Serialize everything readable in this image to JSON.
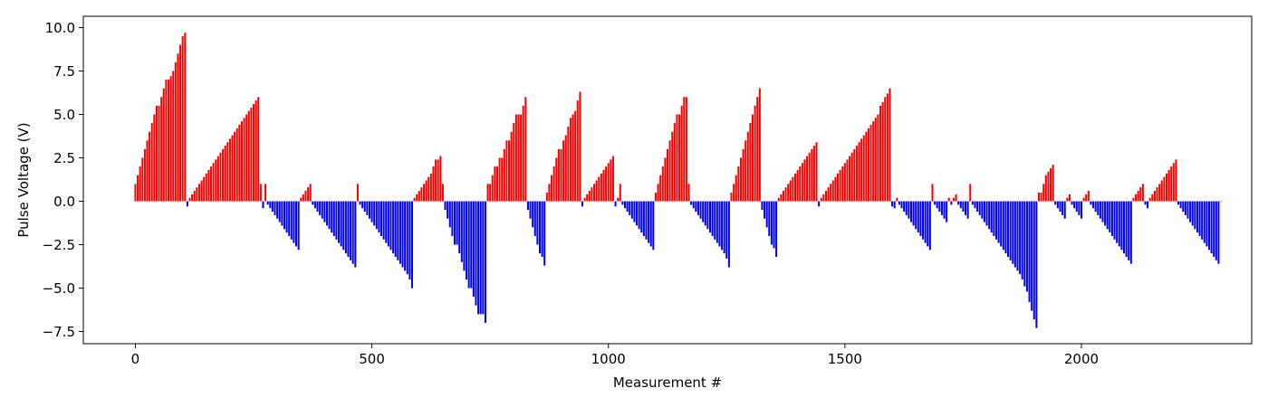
{
  "chart_data": {
    "type": "bar",
    "title": "",
    "xlabel": "Measurement #",
    "ylabel": "Pulse Voltage (V)",
    "xlim": [
      -110,
      2360
    ],
    "ylim": [
      -8.2,
      10.65
    ],
    "x_ticks": [
      0,
      500,
      1000,
      1500,
      2000
    ],
    "y_ticks": [
      10.0,
      7.5,
      5.0,
      2.5,
      0.0,
      -2.5,
      -5.0,
      -7.5
    ],
    "grid": false,
    "legend": "none",
    "bar_spacing": 5,
    "positive_color": "#ff0000",
    "negative_color": "#0000ff",
    "values": [
      1.0,
      1.5,
      2.0,
      2.5,
      3.0,
      3.5,
      4.0,
      4.5,
      5.0,
      5.5,
      5.5,
      6.0,
      6.5,
      7.0,
      7.0,
      7.2,
      7.5,
      8.0,
      8.5,
      9.0,
      9.5,
      9.7,
      -0.3,
      0.2,
      0.4,
      0.6,
      0.8,
      1.0,
      1.2,
      1.4,
      1.6,
      1.8,
      2.0,
      2.2,
      2.4,
      2.6,
      2.8,
      3.0,
      3.2,
      3.4,
      3.6,
      3.8,
      4.0,
      4.2,
      4.4,
      4.6,
      4.8,
      5.0,
      5.2,
      5.4,
      5.6,
      5.8,
      6.0,
      1.0,
      -0.4,
      1.0,
      -0.2,
      -0.4,
      -0.6,
      -0.8,
      -1.0,
      -1.2,
      -1.4,
      -1.6,
      -1.8,
      -2.0,
      -2.2,
      -2.4,
      -2.6,
      -2.8,
      0.2,
      0.4,
      0.6,
      0.8,
      1.0,
      -0.2,
      -0.4,
      -0.6,
      -0.8,
      -1.0,
      -1.2,
      -1.4,
      -1.6,
      -1.8,
      -2.0,
      -2.2,
      -2.4,
      -2.6,
      -2.8,
      -3.0,
      -3.2,
      -3.4,
      -3.6,
      -3.8,
      1.0,
      -0.2,
      -0.4,
      -0.6,
      -0.8,
      -1.0,
      -1.2,
      -1.4,
      -1.6,
      -1.8,
      -2.0,
      -2.2,
      -2.4,
      -2.6,
      -2.8,
      -3.0,
      -3.2,
      -3.4,
      -3.6,
      -3.8,
      -4.0,
      -4.2,
      -4.5,
      -5.0,
      0.2,
      0.4,
      0.6,
      0.8,
      1.0,
      1.2,
      1.4,
      1.6,
      2.0,
      2.4,
      2.4,
      2.6,
      1.0,
      -0.5,
      -1.0,
      -1.5,
      -2.0,
      -2.5,
      -2.5,
      -3.0,
      -3.5,
      -4.0,
      -4.5,
      -5.0,
      -5.0,
      -5.5,
      -6.0,
      -6.5,
      -6.5,
      -6.5,
      -7.0,
      1.0,
      1.0,
      1.5,
      2.0,
      2.0,
      2.5,
      2.5,
      3.0,
      3.5,
      3.5,
      4.0,
      4.5,
      5.0,
      5.0,
      5.0,
      5.5,
      6.0,
      -0.5,
      -1.0,
      -1.5,
      -2.0,
      -2.5,
      -3.0,
      -3.2,
      -3.7,
      0.5,
      1.0,
      1.5,
      2.0,
      2.5,
      3.0,
      3.0,
      3.5,
      3.8,
      4.3,
      4.8,
      5.0,
      5.2,
      5.8,
      6.3,
      -0.3,
      0.2,
      0.4,
      0.6,
      0.8,
      1.0,
      1.2,
      1.4,
      1.6,
      1.8,
      2.0,
      2.2,
      2.4,
      2.6,
      -0.3,
      0.2,
      1.0,
      -0.2,
      -0.4,
      -0.6,
      -0.8,
      -1.0,
      -1.2,
      -1.4,
      -1.6,
      -1.8,
      -2.0,
      -2.2,
      -2.4,
      -2.6,
      -2.8,
      0.5,
      1.0,
      1.5,
      2.0,
      2.5,
      3.0,
      3.5,
      4.0,
      4.5,
      5.0,
      5.0,
      5.5,
      6.0,
      6.0,
      1.0,
      -0.2,
      -0.4,
      -0.6,
      -0.8,
      -1.0,
      -1.2,
      -1.4,
      -1.6,
      -1.8,
      -2.0,
      -2.2,
      -2.4,
      -2.6,
      -2.8,
      -3.0,
      -3.3,
      -3.8,
      0.5,
      1.0,
      1.5,
      2.0,
      2.5,
      3.0,
      3.5,
      4.0,
      4.5,
      5.0,
      5.5,
      6.0,
      6.5,
      -0.5,
      -1.0,
      -1.5,
      -2.0,
      -2.5,
      -2.7,
      -3.2,
      0.2,
      0.4,
      0.6,
      0.8,
      1.0,
      1.2,
      1.4,
      1.6,
      1.8,
      2.0,
      2.2,
      2.4,
      2.6,
      2.8,
      3.0,
      3.2,
      3.4,
      -0.3,
      0.2,
      0.4,
      0.6,
      0.8,
      1.0,
      1.2,
      1.4,
      1.6,
      1.8,
      2.0,
      2.2,
      2.4,
      2.6,
      2.8,
      3.0,
      3.2,
      3.4,
      3.6,
      3.8,
      4.0,
      4.2,
      4.4,
      4.6,
      4.8,
      5.0,
      5.5,
      5.7,
      6.0,
      6.2,
      6.5,
      -0.3,
      -0.4,
      0.2,
      -0.2,
      -0.4,
      -0.6,
      -0.8,
      -1.0,
      -1.2,
      -1.4,
      -1.6,
      -1.8,
      -2.0,
      -2.2,
      -2.4,
      -2.6,
      -2.8,
      1.0,
      -0.2,
      -0.4,
      -0.6,
      -0.8,
      -1.0,
      -1.2,
      0.2,
      -0.2,
      0.2,
      0.4,
      -0.2,
      -0.4,
      -0.6,
      -0.8,
      -1.0,
      1.0,
      -0.2,
      -0.4,
      -0.6,
      -0.8,
      -1.0,
      -1.2,
      -1.4,
      -1.6,
      -1.8,
      -2.0,
      -2.2,
      -2.4,
      -2.6,
      -2.8,
      -3.0,
      -3.2,
      -3.4,
      -3.6,
      -3.8,
      -4.0,
      -4.2,
      -4.5,
      -4.9,
      -5.2,
      -5.8,
      -6.3,
      -6.8,
      -7.3,
      0.5,
      0.5,
      1.0,
      1.5,
      1.7,
      1.9,
      2.1,
      -0.2,
      -0.4,
      -0.6,
      -0.8,
      -1.0,
      0.2,
      0.4,
      -0.2,
      -0.4,
      -0.6,
      -0.8,
      -1.0,
      0.2,
      0.4,
      0.6,
      -0.2,
      -0.4,
      -0.6,
      -0.8,
      -1.0,
      -1.2,
      -1.4,
      -1.6,
      -1.8,
      -2.0,
      -2.2,
      -2.4,
      -2.6,
      -2.8,
      -3.0,
      -3.2,
      -3.4,
      -3.6,
      0.2,
      0.4,
      0.6,
      0.8,
      1.0,
      -0.2,
      -0.4,
      0.2,
      0.4,
      0.6,
      0.8,
      1.0,
      1.2,
      1.4,
      1.6,
      1.8,
      2.0,
      2.2,
      2.4,
      -0.2,
      -0.4,
      -0.6,
      -0.8,
      -1.0,
      -1.2,
      -1.4,
      -1.6,
      -1.8,
      -2.0,
      -2.2,
      -2.4,
      -2.6,
      -2.8,
      -3.0,
      -3.2,
      -3.4,
      -3.6,
      0.0
    ]
  }
}
